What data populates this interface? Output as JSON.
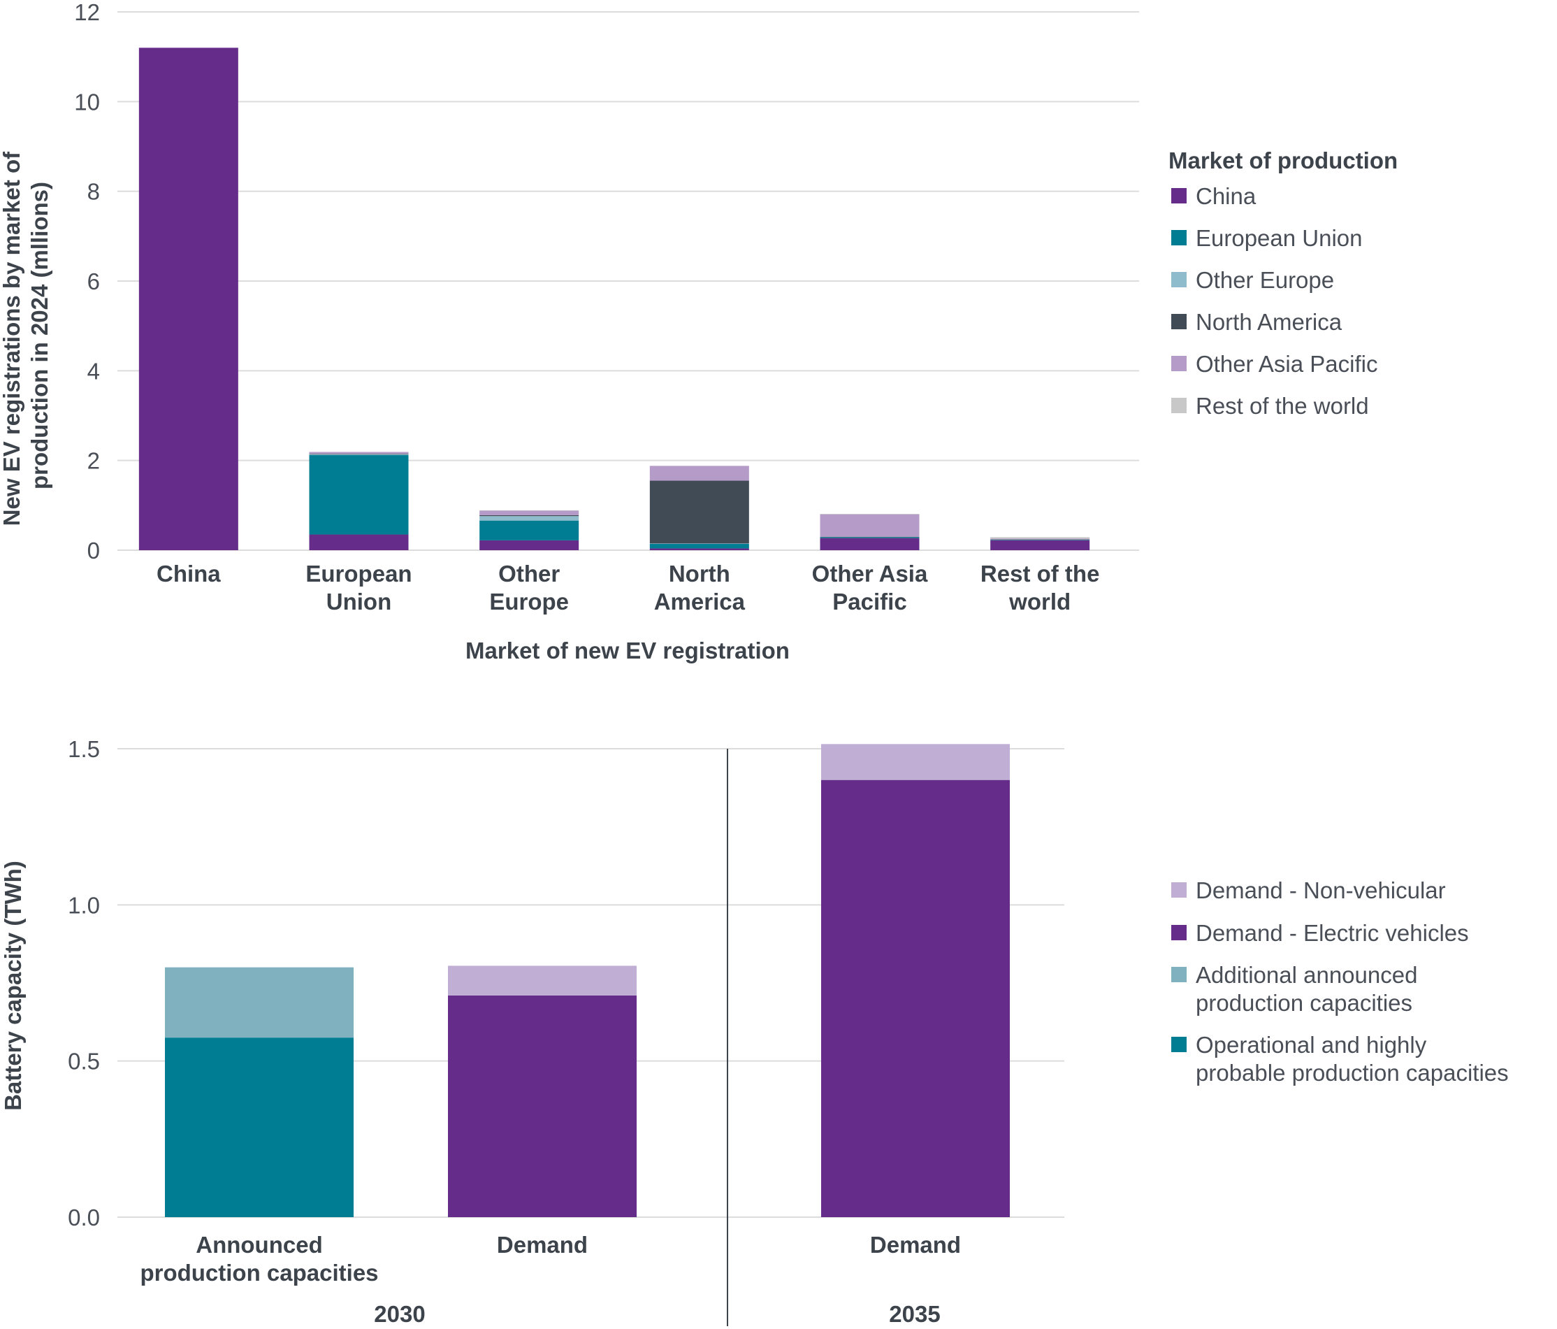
{
  "chart_data": [
    {
      "type": "bar",
      "stacked": true,
      "title": "",
      "xlabel": "Market of new EV registration",
      "ylabel_lines": [
        "New EV registrations by market of",
        "production in 2024 (mllions)"
      ],
      "ylim": [
        0,
        12
      ],
      "yticks": [
        "0",
        "2",
        "4",
        "6",
        "8",
        "10",
        "12"
      ],
      "grid": true,
      "categories": [
        [
          "China"
        ],
        [
          "European",
          "Union"
        ],
        [
          "Other",
          "Europe"
        ],
        [
          "North",
          "America"
        ],
        [
          "Other Asia",
          "Pacific"
        ],
        [
          "Rest of the",
          "world"
        ]
      ],
      "legend_title": "Market of production",
      "legend_position": "right",
      "series": [
        {
          "name": "China",
          "color": "#652d89",
          "values": [
            11.2,
            0.35,
            0.22,
            0.04,
            0.27,
            0.22
          ]
        },
        {
          "name": "European Union",
          "color": "#007d93",
          "values": [
            0.0,
            1.77,
            0.44,
            0.1,
            0.02,
            0.01
          ]
        },
        {
          "name": "Other Europe",
          "color": "#8fbccc",
          "values": [
            0.0,
            0.02,
            0.1,
            0.01,
            0.0,
            0.0
          ]
        },
        {
          "name": "North America",
          "color": "#414b55",
          "values": [
            0.0,
            0.01,
            0.02,
            1.4,
            0.01,
            0.01
          ]
        },
        {
          "name": "Other Asia Pacific",
          "color": "#b49bc8",
          "values": [
            0.0,
            0.04,
            0.1,
            0.33,
            0.5,
            0.02
          ]
        },
        {
          "name": "Rest of the world",
          "color": "#c8c8c8",
          "values": [
            0.0,
            0.0,
            0.01,
            0.0,
            0.01,
            0.03
          ]
        }
      ]
    },
    {
      "type": "bar",
      "stacked": true,
      "title": "",
      "ylabel": "Battery capacity (TWh)",
      "ylim": [
        0,
        1.5
      ],
      "yticks": [
        "0.0",
        "0.5",
        "1.0",
        "1.5"
      ],
      "grid": true,
      "categories": [
        [
          "Announced",
          "production capacities"
        ],
        [
          "Demand"
        ],
        [
          "Demand"
        ]
      ],
      "groups": [
        {
          "label": "2030",
          "categories": [
            0,
            1
          ]
        },
        {
          "label": "2035",
          "categories": [
            2
          ]
        }
      ],
      "legend_position": "right",
      "legend_order": [
        3,
        2,
        1,
        0
      ],
      "series": [
        {
          "name": [
            "Operational and highly",
            "probable production capacities"
          ],
          "color": "#007d93",
          "values": [
            0.575,
            0,
            0
          ]
        },
        {
          "name": [
            "Additional announced",
            "production capacities"
          ],
          "color": "#80b1bf",
          "values": [
            0.225,
            0,
            0
          ]
        },
        {
          "name": [
            "Demand - Electric vehicles"
          ],
          "color": "#652d89",
          "values": [
            0,
            0.71,
            1.4
          ]
        },
        {
          "name": [
            "Demand - Non-vehicular"
          ],
          "color": "#c0aed5",
          "values": [
            0,
            0.095,
            0.115
          ]
        }
      ]
    }
  ]
}
